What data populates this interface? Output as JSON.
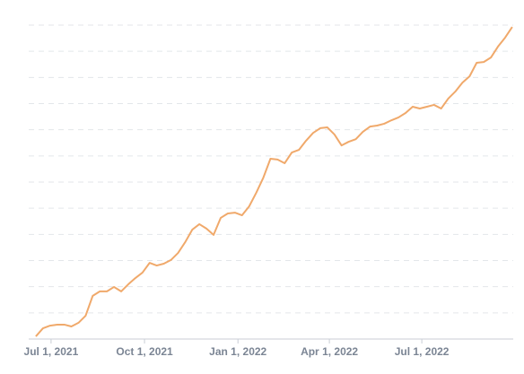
{
  "chart_data": {
    "type": "line",
    "x": [
      "2021-06-16",
      "2021-06-23",
      "2021-06-30",
      "2021-07-07",
      "2021-07-14",
      "2021-07-21",
      "2021-07-28",
      "2021-08-04",
      "2021-08-11",
      "2021-08-18",
      "2021-08-25",
      "2021-09-01",
      "2021-09-08",
      "2021-09-15",
      "2021-09-22",
      "2021-09-29",
      "2021-10-06",
      "2021-10-13",
      "2021-10-20",
      "2021-10-27",
      "2021-11-03",
      "2021-11-10",
      "2021-11-17",
      "2021-11-24",
      "2021-12-01",
      "2021-12-08",
      "2021-12-15",
      "2021-12-22",
      "2021-12-29",
      "2022-01-05",
      "2022-01-12",
      "2022-01-19",
      "2022-01-26",
      "2022-02-02",
      "2022-02-09",
      "2022-02-16",
      "2022-02-23",
      "2022-03-02",
      "2022-03-09",
      "2022-03-16",
      "2022-03-23",
      "2022-03-30",
      "2022-04-06",
      "2022-04-13",
      "2022-04-20",
      "2022-04-27",
      "2022-05-04",
      "2022-05-11",
      "2022-05-18",
      "2022-05-25",
      "2022-06-01",
      "2022-06-08",
      "2022-06-15",
      "2022-06-22",
      "2022-06-29",
      "2022-07-06",
      "2022-07-13",
      "2022-07-20",
      "2022-07-27",
      "2022-08-03",
      "2022-08-10",
      "2022-08-17",
      "2022-08-24",
      "2022-08-31",
      "2022-09-07",
      "2022-09-14",
      "2022-09-21",
      "2022-09-28"
    ],
    "series": [
      {
        "color": "#f0a96b",
        "values": [
          0.1,
          0.41,
          0.51,
          0.55,
          0.55,
          0.48,
          0.62,
          0.89,
          1.65,
          1.82,
          1.82,
          1.99,
          1.82,
          2.09,
          2.33,
          2.54,
          2.91,
          2.81,
          2.88,
          3.02,
          3.29,
          3.7,
          4.18,
          4.39,
          4.22,
          3.98,
          4.63,
          4.8,
          4.83,
          4.73,
          5.07,
          5.59,
          6.17,
          6.89,
          6.86,
          6.72,
          7.13,
          7.23,
          7.58,
          7.88,
          8.06,
          8.09,
          7.82,
          7.4,
          7.54,
          7.64,
          7.92,
          8.12,
          8.16,
          8.23,
          8.36,
          8.47,
          8.64,
          8.88,
          8.81,
          8.88,
          8.95,
          8.81,
          9.19,
          9.46,
          9.8,
          10.04,
          10.56,
          10.59,
          10.76,
          11.18,
          11.52,
          11.93
        ]
      }
    ],
    "xlim": [
      "2021-06-09",
      "2022-09-29"
    ],
    "xticks": [
      {
        "value": "2021-07-01",
        "label": "Jul 1, 2021"
      },
      {
        "value": "2021-10-01",
        "label": "Oct 1, 2021"
      },
      {
        "value": "2022-01-01",
        "label": "Jan 1, 2022"
      },
      {
        "value": "2022-04-01",
        "label": "Apr 1, 2022"
      },
      {
        "value": "2022-07-01",
        "label": "Jul 1, 2022"
      }
    ],
    "ylim": [
      0,
      12.5
    ],
    "yticks": [
      1,
      2,
      3,
      4,
      5,
      6,
      7,
      8,
      9,
      10,
      11,
      12
    ],
    "grid": true
  }
}
